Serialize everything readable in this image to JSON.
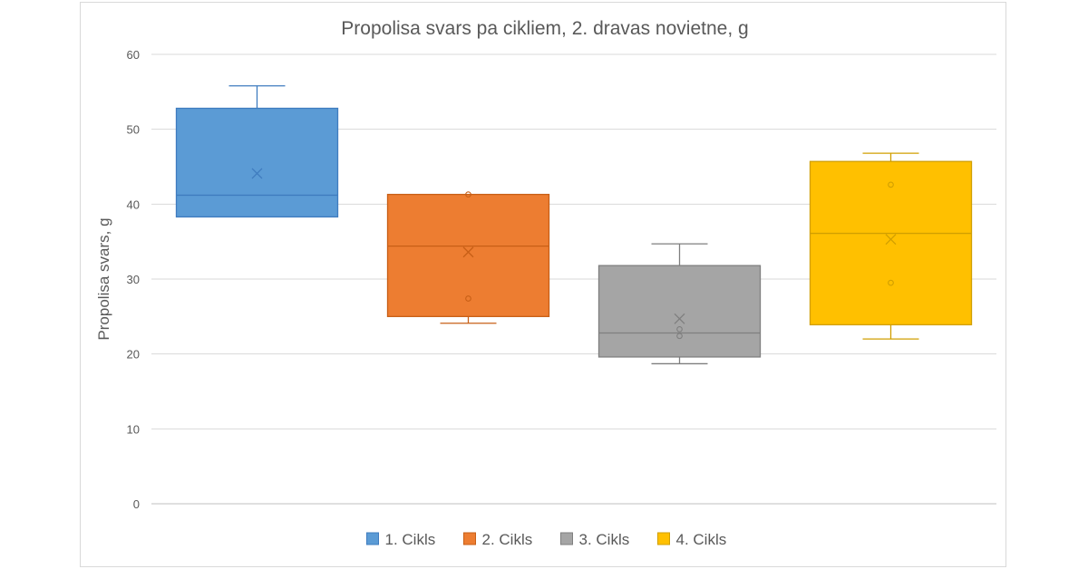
{
  "chart_data": {
    "type": "box",
    "title": "Propolisa svars pa cikliem, 2. dravas novietne, g",
    "ylabel": "Propolisa svars, g",
    "xlabel": "",
    "ylim": [
      0,
      60
    ],
    "yticks": [
      0,
      10,
      20,
      30,
      40,
      50,
      60
    ],
    "grid": true,
    "legend_position": "bottom",
    "series": [
      {
        "name": "1. Cikls",
        "color": "#5b9bd5",
        "stroke": "#3f7cbf",
        "min": 38.3,
        "q1": 38.3,
        "median": 41.2,
        "q3": 52.8,
        "max": 55.8,
        "mean": 44.1,
        "points": []
      },
      {
        "name": "2. Cikls",
        "color": "#ed7d31",
        "stroke": "#c85f16",
        "min": 24.1,
        "q1": 25.0,
        "median": 34.4,
        "q3": 41.3,
        "max": 41.3,
        "mean": 33.6,
        "points": [
          27.4,
          41.3
        ]
      },
      {
        "name": "3. Cikls",
        "color": "#a5a5a5",
        "stroke": "#7f7f7f",
        "min": 18.7,
        "q1": 19.6,
        "median": 22.8,
        "q3": 31.8,
        "max": 34.7,
        "mean": 24.7,
        "points": [
          22.4,
          23.3
        ]
      },
      {
        "name": "4. Cikls",
        "color": "#ffc000",
        "stroke": "#d19f00",
        "min": 22.0,
        "q1": 23.9,
        "median": 36.1,
        "q3": 45.7,
        "max": 46.8,
        "mean": 35.3,
        "points": [
          29.5,
          42.6
        ]
      }
    ]
  }
}
